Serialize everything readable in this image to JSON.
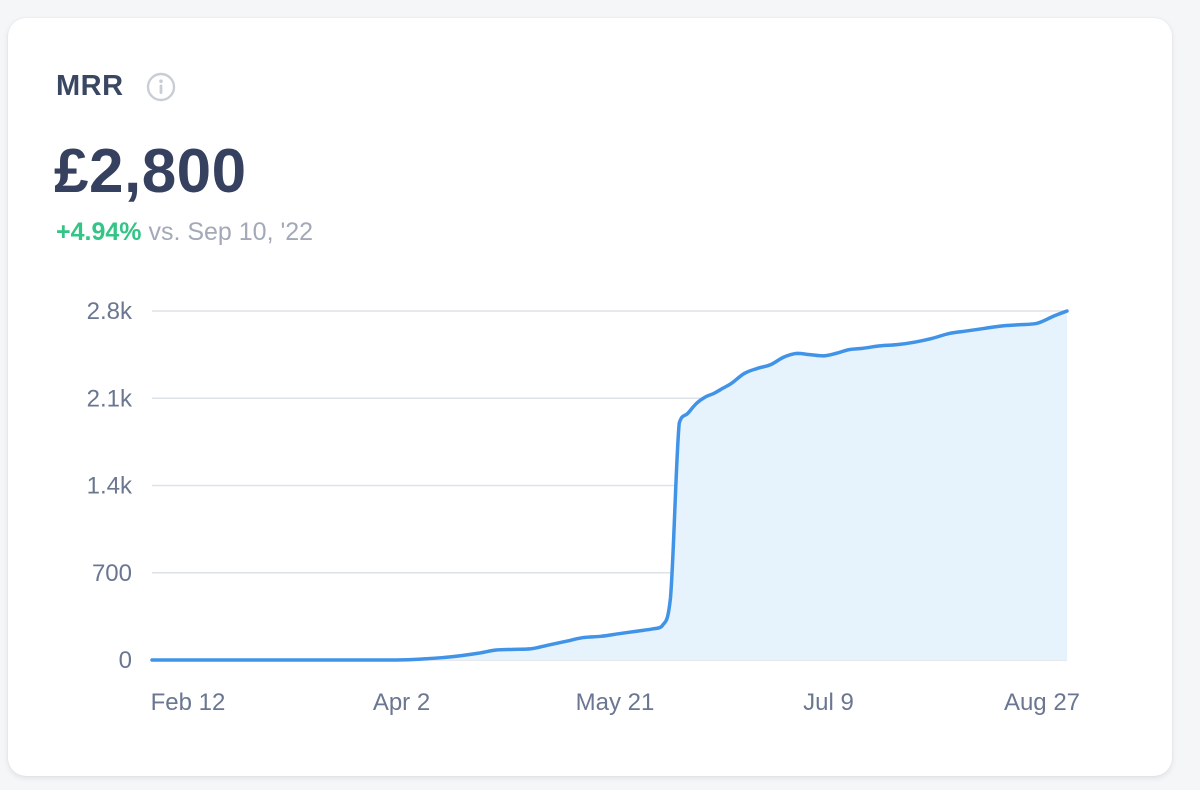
{
  "metric": {
    "title": "MRR",
    "value": "£2,800",
    "change_pct": "+4.94%",
    "change_text": "vs. Sep 10, '22"
  },
  "icons": {
    "info": "info-icon"
  },
  "colors": {
    "line": "#4193e8",
    "area": "#e6f3fd",
    "positive": "#34c586",
    "title": "#3a4763",
    "grid": "#dde1e8"
  },
  "chart_data": {
    "type": "area",
    "title": "",
    "xlabel": "",
    "ylabel": "",
    "ylim": [
      0,
      2800
    ],
    "yticks": [
      0,
      700,
      1400,
      2100,
      2800
    ],
    "ytick_labels": [
      "0",
      "700",
      "1.4k",
      "2.1k",
      "2.8k"
    ],
    "xlim": [
      "2022-02-12",
      "2022-09-10"
    ],
    "xticks": [
      "2022-02-12",
      "2022-04-02",
      "2022-05-21",
      "2022-07-09",
      "2022-08-27"
    ],
    "xtick_labels": [
      "Feb 12",
      "Apr 2",
      "May 21",
      "Jul 9",
      "Aug 27"
    ],
    "grid": true,
    "series": [
      {
        "x": [
          "2022-02-12",
          "2022-02-26",
          "2022-03-12",
          "2022-03-26",
          "2022-04-09",
          "2022-04-16",
          "2022-04-20",
          "2022-04-24",
          "2022-04-28",
          "2022-05-02",
          "2022-05-06",
          "2022-05-10",
          "2022-05-14",
          "2022-05-18",
          "2022-05-22",
          "2022-05-26",
          "2022-05-30",
          "2022-06-03",
          "2022-06-07",
          "2022-06-09",
          "2022-06-11",
          "2022-06-13",
          "2022-06-15",
          "2022-06-17",
          "2022-06-19",
          "2022-06-21",
          "2022-06-23",
          "2022-06-25",
          "2022-06-28",
          "2022-07-01",
          "2022-07-04",
          "2022-07-07",
          "2022-07-10",
          "2022-07-13",
          "2022-07-16",
          "2022-07-19",
          "2022-07-22",
          "2022-07-25",
          "2022-07-29",
          "2022-08-02",
          "2022-08-06",
          "2022-08-10",
          "2022-08-14",
          "2022-08-18",
          "2022-08-22",
          "2022-08-26",
          "2022-08-30",
          "2022-09-03",
          "2022-09-07",
          "2022-09-10"
        ],
        "y": [
          0,
          0,
          0,
          0,
          0,
          10,
          20,
          35,
          55,
          80,
          85,
          90,
          120,
          150,
          180,
          190,
          210,
          230,
          250,
          270,
          500,
          1900,
          1980,
          2060,
          2110,
          2140,
          2180,
          2220,
          2300,
          2340,
          2370,
          2430,
          2460,
          2450,
          2440,
          2460,
          2490,
          2500,
          2520,
          2530,
          2550,
          2580,
          2620,
          2640,
          2660,
          2680,
          2690,
          2700,
          2760,
          2800
        ]
      }
    ]
  }
}
